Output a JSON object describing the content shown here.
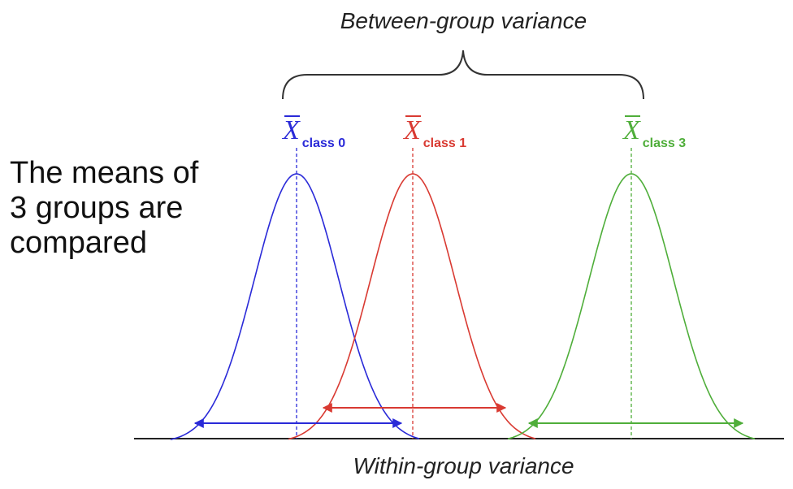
{
  "diagram": {
    "between_label": "Between-group variance",
    "within_label": "Within-group variance",
    "description_lines": [
      "The means of",
      "3 groups are",
      "compared"
    ],
    "mean_symbol": "X",
    "groups": [
      {
        "id": "class0",
        "subscript": "class 0",
        "color": "#2a2ad8"
      },
      {
        "id": "class1",
        "subscript": "class 1",
        "color": "#d93a32"
      },
      {
        "id": "class3",
        "subscript": "class 3",
        "color": "#4fae3a"
      }
    ],
    "axis_color": "#222222",
    "brace_color": "#333333"
  }
}
